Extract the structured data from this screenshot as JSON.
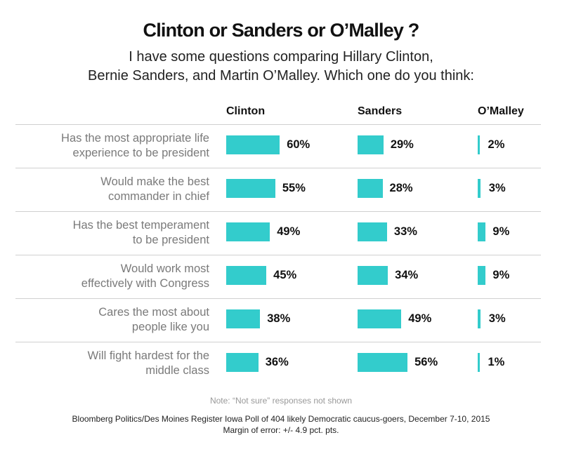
{
  "chart_data": {
    "type": "bar",
    "title": "Clinton or Sanders or O’Malley ?",
    "subtitle_lines": [
      "I have some questions comparing Hillary Clinton,",
      "Bernie Sanders, and Martin O’Malley.  Which one do you think:"
    ],
    "categories": [
      [
        "Has the most appropriate life",
        "experience to be president"
      ],
      [
        "Would make the best",
        "commander in chief"
      ],
      [
        "Has the best temperament",
        "to be president"
      ],
      [
        "Would work most",
        "effectively with Congress"
      ],
      [
        "Cares the most about",
        "people like you"
      ],
      [
        "Will fight hardest for the",
        "middle class"
      ]
    ],
    "series": [
      {
        "name": "Clinton",
        "values": [
          60,
          55,
          49,
          45,
          38,
          36
        ],
        "labels": [
          "60%",
          "55%",
          "49%",
          "45%",
          "38%",
          "36%"
        ]
      },
      {
        "name": "Sanders",
        "values": [
          29,
          28,
          33,
          34,
          49,
          56
        ],
        "labels": [
          "29%",
          "28%",
          "33%",
          "34%",
          "49%",
          "56%"
        ]
      },
      {
        "name": "O’Malley",
        "values": [
          2,
          3,
          9,
          9,
          3,
          1
        ],
        "labels": [
          "2%",
          "3%",
          "9%",
          "9%",
          "3%",
          "1%"
        ]
      }
    ],
    "unit": "%",
    "bar_color": "#33cccc",
    "grid": false,
    "note": "Note: “Not sure” responses not shown",
    "source_lines": [
      "Bloomberg Politics/Des Moines Register Iowa Poll of 404 likely Democratic caucus-goers, December 7-10, 2015",
      "Margin of error: +/- 4.9 pct. pts."
    ]
  }
}
